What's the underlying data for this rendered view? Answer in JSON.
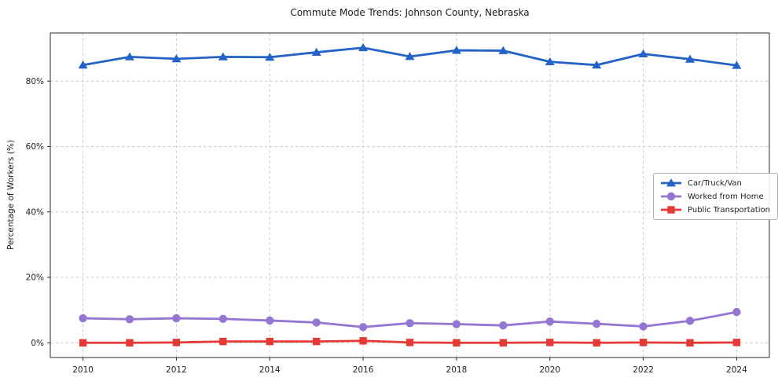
{
  "chart_data": {
    "type": "line",
    "title": "Commute Mode Trends: Johnson County, Nebraska",
    "xlabel": "",
    "ylabel": "Percentage of Workers (%)",
    "x": [
      2010,
      2011,
      2012,
      2013,
      2014,
      2015,
      2016,
      2017,
      2018,
      2019,
      2020,
      2021,
      2022,
      2023,
      2024
    ],
    "series": [
      {
        "name": "Car/Truck/Van",
        "color": "#2362c6",
        "marker": "triangle",
        "values": [
          84.9,
          87.4,
          86.8,
          87.4,
          87.3,
          88.8,
          90.2,
          87.5,
          89.4,
          89.3,
          85.9,
          84.9,
          88.3,
          86.7,
          84.8
        ]
      },
      {
        "name": "Worked from Home",
        "color": "#9575d2",
        "marker": "circle",
        "values": [
          7.5,
          7.2,
          7.5,
          7.3,
          6.8,
          6.2,
          4.8,
          6.0,
          5.7,
          5.3,
          6.5,
          5.8,
          5.0,
          6.7,
          9.4
        ]
      },
      {
        "name": "Public Transportation",
        "color": "#e53935",
        "marker": "square",
        "values": [
          0.0,
          0.0,
          0.1,
          0.4,
          0.4,
          0.4,
          0.6,
          0.1,
          0.0,
          0.0,
          0.1,
          0.0,
          0.1,
          0.0,
          0.1
        ]
      }
    ],
    "xlim": [
      2009.3,
      2024.7
    ],
    "ylim": [
      -4.5,
      94.7
    ],
    "xticks": [
      2010,
      2012,
      2014,
      2016,
      2018,
      2020,
      2022,
      2024
    ],
    "xtick_labels": [
      "2010",
      "2012",
      "2014",
      "2016",
      "2018",
      "2020",
      "2022",
      "2024"
    ],
    "yticks": [
      0,
      20,
      40,
      60,
      80
    ],
    "ytick_labels": [
      "0%",
      "20%",
      "40%",
      "60%",
      "80%"
    ],
    "grid": true,
    "grid_color": "#cccccc",
    "axis_color": "#2b2b2b",
    "legend_position": "center-right"
  }
}
